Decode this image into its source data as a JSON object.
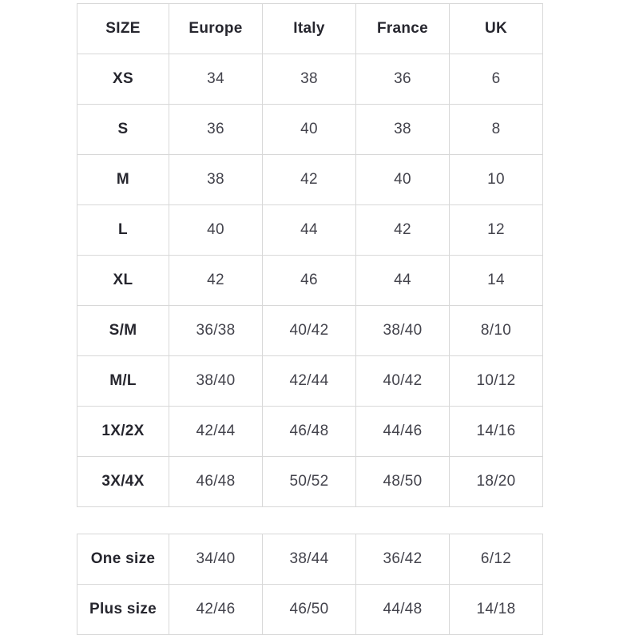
{
  "colors": {
    "background": "#ffffff",
    "border": "#d8d8d8",
    "header_text": "#26262e",
    "value_text": "#43434c"
  },
  "size_chart": {
    "headers": [
      "SIZE",
      "Europe",
      "Italy",
      "France",
      "UK"
    ],
    "rows": [
      [
        "XS",
        "34",
        "38",
        "36",
        "6"
      ],
      [
        "S",
        "36",
        "40",
        "38",
        "8"
      ],
      [
        "M",
        "38",
        "42",
        "40",
        "10"
      ],
      [
        "L",
        "40",
        "44",
        "42",
        "12"
      ],
      [
        "XL",
        "42",
        "46",
        "44",
        "14"
      ],
      [
        "S/M",
        "36/38",
        "40/42",
        "38/40",
        "8/10"
      ],
      [
        "M/L",
        "38/40",
        "42/44",
        "40/42",
        "10/12"
      ],
      [
        "1X/2X",
        "42/44",
        "46/48",
        "44/46",
        "14/16"
      ],
      [
        "3X/4X",
        "46/48",
        "50/52",
        "48/50",
        "18/20"
      ]
    ]
  },
  "special_sizes": {
    "rows": [
      [
        "One size",
        "34/40",
        "38/44",
        "36/42",
        "6/12"
      ],
      [
        "Plus size",
        "42/46",
        "46/50",
        "44/48",
        "14/18"
      ]
    ]
  },
  "chart_data": {
    "type": "table",
    "title": "",
    "columns": [
      "SIZE",
      "Europe",
      "Italy",
      "France",
      "UK"
    ],
    "rows": [
      {
        "size": "XS",
        "europe": "34",
        "italy": "38",
        "france": "36",
        "uk": "6"
      },
      {
        "size": "S",
        "europe": "36",
        "italy": "40",
        "france": "38",
        "uk": "8"
      },
      {
        "size": "M",
        "europe": "38",
        "italy": "42",
        "france": "40",
        "uk": "10"
      },
      {
        "size": "L",
        "europe": "40",
        "italy": "44",
        "france": "42",
        "uk": "12"
      },
      {
        "size": "XL",
        "europe": "42",
        "italy": "46",
        "france": "44",
        "uk": "14"
      },
      {
        "size": "S/M",
        "europe": "36/38",
        "italy": "40/42",
        "france": "38/40",
        "uk": "8/10"
      },
      {
        "size": "M/L",
        "europe": "38/40",
        "italy": "42/44",
        "france": "40/42",
        "uk": "10/12"
      },
      {
        "size": "1X/2X",
        "europe": "42/44",
        "italy": "46/48",
        "france": "44/46",
        "uk": "14/16"
      },
      {
        "size": "3X/4X",
        "europe": "46/48",
        "italy": "50/52",
        "france": "48/50",
        "uk": "18/20"
      },
      {
        "size": "One size",
        "europe": "34/40",
        "italy": "38/44",
        "france": "36/42",
        "uk": "6/12"
      },
      {
        "size": "Plus size",
        "europe": "42/46",
        "italy": "46/50",
        "france": "44/48",
        "uk": "14/18"
      }
    ],
    "layout": {
      "grid": true,
      "two_tables": true,
      "second_table_rows": [
        "One size",
        "Plus size"
      ]
    }
  }
}
